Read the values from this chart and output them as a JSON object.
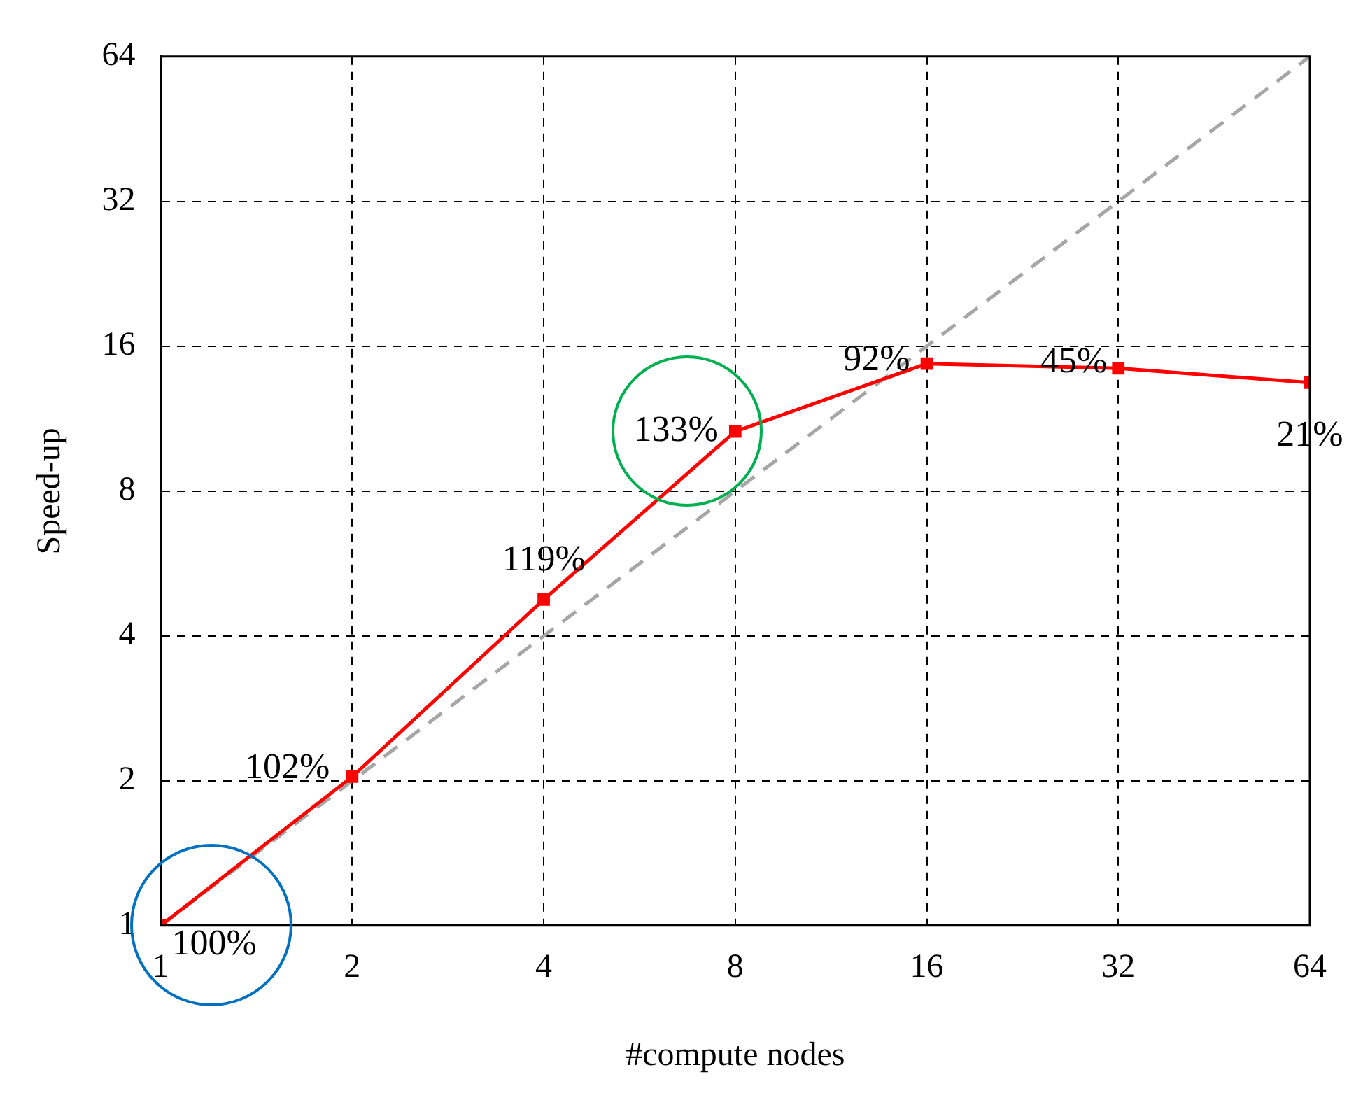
{
  "chart_data": {
    "type": "line",
    "xlabel": "#compute nodes",
    "ylabel": "Speed-up",
    "log": "xy",
    "x": [
      1,
      2,
      4,
      8,
      16,
      32,
      64
    ],
    "series": [
      {
        "color": "#ff0000",
        "marker": "square",
        "line_style": "solid",
        "values": [
          1,
          2.04,
          4.76,
          10.64,
          14.72,
          14.4,
          13.44
        ]
      },
      {
        "color": "#a6a6a6",
        "marker": "none",
        "line_style": "dashed",
        "x": [
          1,
          64
        ],
        "values": [
          1,
          64
        ]
      }
    ],
    "annotations": [
      {
        "text": "100%",
        "x": 1,
        "y": 1
      },
      {
        "text": "102%",
        "x": 2,
        "y": 2.04
      },
      {
        "text": "119%",
        "x": 4,
        "y": 4.76
      },
      {
        "text": "133%",
        "x": 8,
        "y": 10.64
      },
      {
        "text": "92%",
        "x": 16,
        "y": 14.72
      },
      {
        "text": "45%",
        "x": 32,
        "y": 14.4
      },
      {
        "text": "21%",
        "x": 64,
        "y": 13.44
      }
    ],
    "xlim": [
      1,
      64
    ],
    "ylim": [
      1,
      64
    ],
    "xticks": [
      1,
      2,
      4,
      8,
      16,
      32,
      64
    ],
    "yticks": [
      1,
      2,
      4,
      8,
      16,
      32,
      64
    ],
    "grid": true,
    "legend": false
  }
}
